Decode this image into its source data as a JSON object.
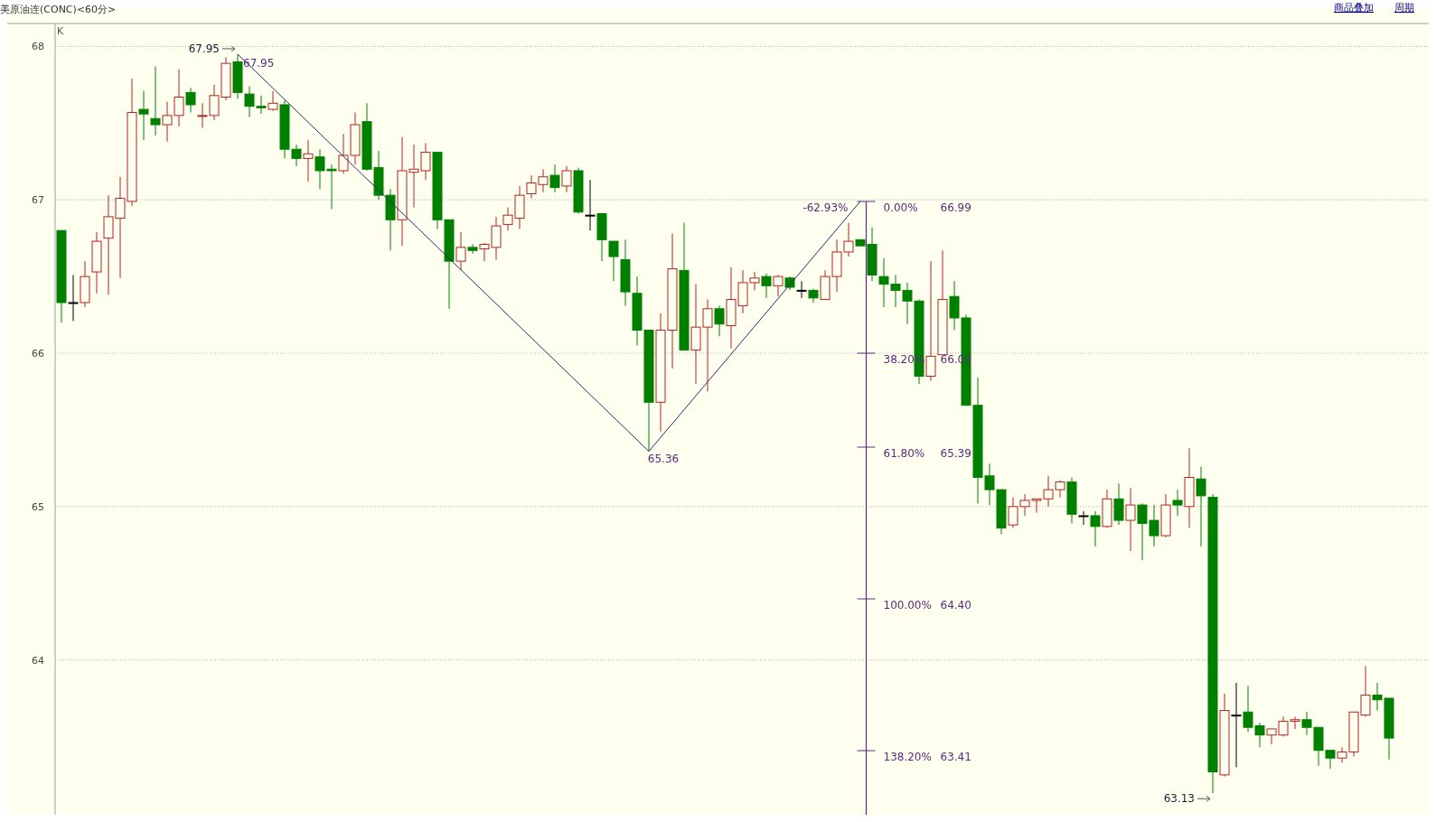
{
  "chart_data": {
    "type": "candlestick",
    "categories": [
      null,
      null,
      null,
      null,
      null,
      null,
      null,
      null,
      null,
      null,
      null,
      null,
      null,
      null,
      null,
      null,
      null,
      null,
      null,
      null,
      null,
      null,
      null,
      null,
      null,
      null,
      null,
      null,
      null,
      null,
      null,
      null,
      null,
      null,
      null,
      null,
      null,
      null,
      null,
      null,
      null,
      null,
      null,
      null,
      null,
      null,
      null,
      null,
      null,
      null,
      null,
      null,
      null,
      null,
      null,
      null,
      null,
      null,
      null,
      null,
      null,
      null,
      null,
      null,
      null,
      null,
      null,
      null,
      null,
      null,
      null,
      null,
      null,
      null,
      null,
      null,
      null,
      null,
      null,
      null,
      null,
      null,
      null,
      null,
      null,
      null,
      null,
      null,
      null,
      null,
      null,
      null,
      null,
      null,
      null,
      null,
      null,
      null,
      null,
      null,
      null,
      null,
      null,
      null,
      null,
      null,
      null,
      null,
      null,
      null,
      null,
      null,
      null,
      null
    ],
    "ohlc": [
      [
        66.8,
        66.8,
        66.2,
        66.33
      ],
      [
        66.33,
        66.51,
        66.21,
        66.33
      ],
      [
        66.33,
        66.6,
        66.3,
        66.5
      ],
      [
        66.53,
        66.79,
        66.39,
        66.73
      ],
      [
        66.75,
        67.03,
        66.38,
        66.89
      ],
      [
        66.88,
        67.15,
        66.49,
        67.01
      ],
      [
        66.99,
        67.79,
        66.96,
        67.57
      ],
      [
        67.59,
        67.71,
        67.39,
        67.56
      ],
      [
        67.53,
        67.87,
        67.42,
        67.49
      ],
      [
        67.49,
        67.64,
        67.38,
        67.55
      ],
      [
        67.55,
        67.85,
        67.48,
        67.67
      ],
      [
        67.7,
        67.73,
        67.57,
        67.62
      ],
      [
        67.55,
        67.63,
        67.47,
        67.55
      ],
      [
        67.55,
        67.75,
        67.52,
        67.68
      ],
      [
        67.67,
        67.93,
        67.65,
        67.89
      ],
      [
        67.9,
        67.95,
        67.66,
        67.7
      ],
      [
        67.69,
        67.74,
        67.54,
        67.61
      ],
      [
        67.61,
        67.68,
        67.56,
        67.6
      ],
      [
        67.59,
        67.71,
        67.58,
        67.63
      ],
      [
        67.62,
        67.65,
        67.27,
        67.33
      ],
      [
        67.33,
        67.36,
        67.22,
        67.27
      ],
      [
        67.27,
        67.39,
        67.12,
        67.3
      ],
      [
        67.28,
        67.33,
        67.07,
        67.19
      ],
      [
        67.2,
        67.23,
        66.94,
        67.19
      ],
      [
        67.19,
        67.43,
        67.17,
        67.29
      ],
      [
        67.29,
        67.57,
        67.23,
        67.49
      ],
      [
        67.51,
        67.63,
        67.19,
        67.2
      ],
      [
        67.21,
        67.32,
        67.0,
        67.03
      ],
      [
        67.03,
        67.07,
        66.67,
        66.87
      ],
      [
        66.87,
        67.41,
        66.7,
        67.19
      ],
      [
        67.18,
        67.36,
        66.95,
        67.2
      ],
      [
        67.19,
        67.37,
        67.13,
        67.31
      ],
      [
        67.31,
        67.31,
        66.81,
        66.87
      ],
      [
        66.87,
        66.87,
        66.29,
        66.6
      ],
      [
        66.6,
        66.79,
        66.54,
        66.69
      ],
      [
        66.69,
        66.71,
        66.65,
        66.67
      ],
      [
        66.68,
        66.72,
        66.6,
        66.71
      ],
      [
        66.69,
        66.89,
        66.61,
        66.83
      ],
      [
        66.84,
        66.95,
        66.8,
        66.9
      ],
      [
        66.88,
        67.09,
        66.81,
        67.03
      ],
      [
        67.04,
        67.16,
        67.01,
        67.11
      ],
      [
        67.1,
        67.2,
        67.05,
        67.15
      ],
      [
        67.16,
        67.23,
        67.05,
        67.08
      ],
      [
        67.09,
        67.22,
        67.05,
        67.19
      ],
      [
        67.19,
        67.21,
        66.91,
        66.92
      ],
      [
        66.9,
        67.13,
        66.8,
        66.9
      ],
      [
        66.91,
        66.91,
        66.6,
        66.74
      ],
      [
        66.73,
        66.73,
        66.47,
        66.63
      ],
      [
        66.61,
        66.74,
        66.31,
        66.4
      ],
      [
        66.39,
        66.5,
        66.05,
        66.15
      ],
      [
        66.15,
        66.15,
        65.36,
        65.68
      ],
      [
        65.68,
        66.26,
        65.49,
        66.15
      ],
      [
        66.15,
        66.78,
        65.9,
        66.55
      ],
      [
        66.54,
        66.85,
        66.02,
        66.02
      ],
      [
        66.02,
        66.45,
        65.8,
        66.17
      ],
      [
        66.17,
        66.35,
        65.75,
        66.29
      ],
      [
        66.29,
        66.31,
        66.11,
        66.19
      ],
      [
        66.18,
        66.56,
        66.03,
        66.35
      ],
      [
        66.31,
        66.54,
        66.26,
        66.46
      ],
      [
        66.46,
        66.53,
        66.41,
        66.49
      ],
      [
        66.5,
        66.52,
        66.36,
        66.44
      ],
      [
        66.44,
        66.51,
        66.37,
        66.5
      ],
      [
        66.49,
        66.5,
        66.41,
        66.43
      ],
      [
        66.41,
        66.47,
        66.36,
        66.41
      ],
      [
        66.41,
        66.42,
        66.33,
        66.36
      ],
      [
        66.35,
        66.54,
        66.35,
        66.5
      ],
      [
        66.5,
        66.74,
        66.4,
        66.66
      ],
      [
        66.66,
        66.85,
        66.63,
        66.73
      ],
      [
        66.74,
        66.74,
        66.7,
        66.7
      ],
      [
        66.71,
        66.82,
        66.47,
        66.51
      ],
      [
        66.5,
        66.62,
        66.3,
        66.45
      ],
      [
        66.45,
        66.51,
        66.3,
        66.41
      ],
      [
        66.41,
        66.46,
        66.19,
        66.34
      ],
      [
        66.34,
        66.35,
        65.8,
        65.85
      ],
      [
        65.85,
        66.6,
        65.82,
        65.98
      ],
      [
        65.99,
        66.67,
        65.99,
        66.35
      ],
      [
        66.37,
        66.47,
        66.15,
        66.23
      ],
      [
        66.23,
        66.25,
        65.66,
        65.66
      ],
      [
        65.66,
        65.84,
        65.02,
        65.19
      ],
      [
        65.2,
        65.28,
        65.01,
        65.11
      ],
      [
        65.11,
        65.11,
        64.82,
        64.86
      ],
      [
        64.88,
        65.06,
        64.86,
        65.0
      ],
      [
        65.0,
        65.08,
        64.94,
        65.04
      ],
      [
        65.04,
        65.05,
        64.96,
        65.05
      ],
      [
        65.05,
        65.2,
        65.0,
        65.11
      ],
      [
        65.11,
        65.17,
        65.06,
        65.16
      ],
      [
        65.16,
        65.19,
        64.89,
        64.95
      ],
      [
        64.94,
        64.97,
        64.88,
        64.94
      ],
      [
        64.94,
        64.97,
        64.74,
        64.87
      ],
      [
        64.87,
        65.11,
        64.86,
        65.05
      ],
      [
        65.05,
        65.15,
        64.88,
        64.91
      ],
      [
        64.91,
        65.12,
        64.71,
        65.01
      ],
      [
        65.01,
        65.02,
        64.65,
        64.89
      ],
      [
        64.91,
        65.01,
        64.74,
        64.81
      ],
      [
        64.81,
        65.08,
        64.8,
        65.01
      ],
      [
        65.04,
        65.11,
        64.94,
        65.01
      ],
      [
        65.0,
        65.38,
        64.86,
        65.19
      ],
      [
        65.18,
        65.26,
        64.74,
        65.07
      ],
      [
        65.06,
        65.08,
        63.13,
        63.27
      ],
      [
        63.25,
        63.78,
        63.24,
        63.67
      ],
      [
        63.64,
        63.85,
        63.3,
        63.64
      ],
      [
        63.66,
        63.83,
        63.53,
        63.56
      ],
      [
        63.57,
        63.59,
        63.43,
        63.51
      ],
      [
        63.51,
        63.55,
        63.45,
        63.55
      ],
      [
        63.51,
        63.63,
        63.5,
        63.6
      ],
      [
        63.6,
        63.63,
        63.55,
        63.61
      ],
      [
        63.61,
        63.66,
        63.51,
        63.56
      ],
      [
        63.56,
        63.56,
        63.31,
        63.41
      ],
      [
        63.41,
        63.41,
        63.29,
        63.36
      ],
      [
        63.36,
        63.43,
        63.33,
        63.4
      ],
      [
        63.4,
        63.66,
        63.37,
        63.66
      ],
      [
        63.64,
        63.96,
        63.63,
        63.77
      ],
      [
        63.77,
        63.85,
        63.67,
        63.74
      ],
      [
        63.75,
        63.75,
        63.35,
        63.49
      ]
    ],
    "colors": [
      "#008000",
      "#000000",
      "#b22222",
      "#b22222",
      "#b22222",
      "#b22222",
      "#b22222",
      "#008000",
      "#008000",
      "#b22222",
      "#b22222",
      "#008000",
      "#b22222",
      "#b22222",
      "#b22222",
      "#008000",
      "#008000",
      "#008000",
      "#b22222",
      "#008000",
      "#008000",
      "#b22222",
      "#008000",
      "#008000",
      "#b22222",
      "#b22222",
      "#008000",
      "#008000",
      "#008000",
      "#b22222",
      "#b22222",
      "#b22222",
      "#008000",
      "#008000",
      "#b22222",
      "#008000",
      "#b22222",
      "#b22222",
      "#b22222",
      "#b22222",
      "#b22222",
      "#b22222",
      "#008000",
      "#b22222",
      "#008000",
      "#000000",
      "#008000",
      "#008000",
      "#008000",
      "#008000",
      "#008000",
      "#b22222",
      "#b22222",
      "#008000",
      "#b22222",
      "#b22222",
      "#008000",
      "#b22222",
      "#b22222",
      "#b22222",
      "#008000",
      "#b22222",
      "#008000",
      "#000000",
      "#008000",
      "#b22222",
      "#b22222",
      "#b22222",
      "#008000",
      "#008000",
      "#008000",
      "#008000",
      "#008000",
      "#008000",
      "#b22222",
      "#b22222",
      "#008000",
      "#008000",
      "#008000",
      "#008000",
      "#008000",
      "#b22222",
      "#b22222",
      "#b22222",
      "#b22222",
      "#b22222",
      "#008000",
      "#000000",
      "#008000",
      "#b22222",
      "#008000",
      "#b22222",
      "#008000",
      "#008000",
      "#b22222",
      "#008000",
      "#b22222",
      "#008000",
      "#008000",
      "#b22222",
      "#000000",
      "#008000",
      "#008000",
      "#b22222",
      "#b22222",
      "#b22222",
      "#008000",
      "#008000",
      "#008000",
      "#b22222",
      "#b22222",
      "#b22222",
      "#008000",
      "#008000"
    ],
    "series": [
      {
        "type": "line",
        "color": "#2a2a6a",
        "values": [
          null,
          null,
          null,
          null,
          null,
          null,
          null,
          null,
          null,
          null,
          null,
          null,
          null,
          null,
          null,
          67.95,
          null,
          null,
          null,
          null,
          null,
          null,
          null,
          null,
          null,
          null,
          null,
          null,
          null,
          null,
          null,
          null,
          null,
          null,
          null,
          null,
          null,
          null,
          null,
          null,
          null,
          null,
          null,
          null,
          null,
          null,
          null,
          null,
          null,
          null,
          65.36,
          null,
          null,
          null,
          null,
          null,
          null,
          null,
          null,
          null,
          null,
          null,
          null,
          null,
          null,
          null,
          null,
          null,
          66.99,
          null,
          null,
          null,
          null,
          null,
          null,
          null,
          null,
          null,
          null,
          null,
          null,
          null,
          null,
          null,
          null,
          null,
          null,
          null,
          null,
          null,
          null,
          null,
          null,
          null,
          null,
          null,
          null,
          null,
          null,
          null,
          null,
          null,
          null,
          null,
          null,
          null,
          null,
          null,
          null,
          null,
          null,
          null,
          null,
          null
        ]
      }
    ],
    "ylim": [
      62.99,
      68.15
    ],
    "yticks": [
      64,
      65,
      66,
      67,
      68
    ],
    "grid": "y",
    "annotations": [
      "美原油连(CONC)<60分>",
      "商品叠加",
      "周期",
      "K",
      "67.95",
      "67.95",
      "65.36",
      "-62.93%",
      "0.00%",
      "66.99",
      "38.20%",
      "66.00",
      "61.80%",
      "65.39",
      "100.00%",
      "64.40",
      "138.20%",
      "63.41",
      "63.13"
    ]
  }
}
